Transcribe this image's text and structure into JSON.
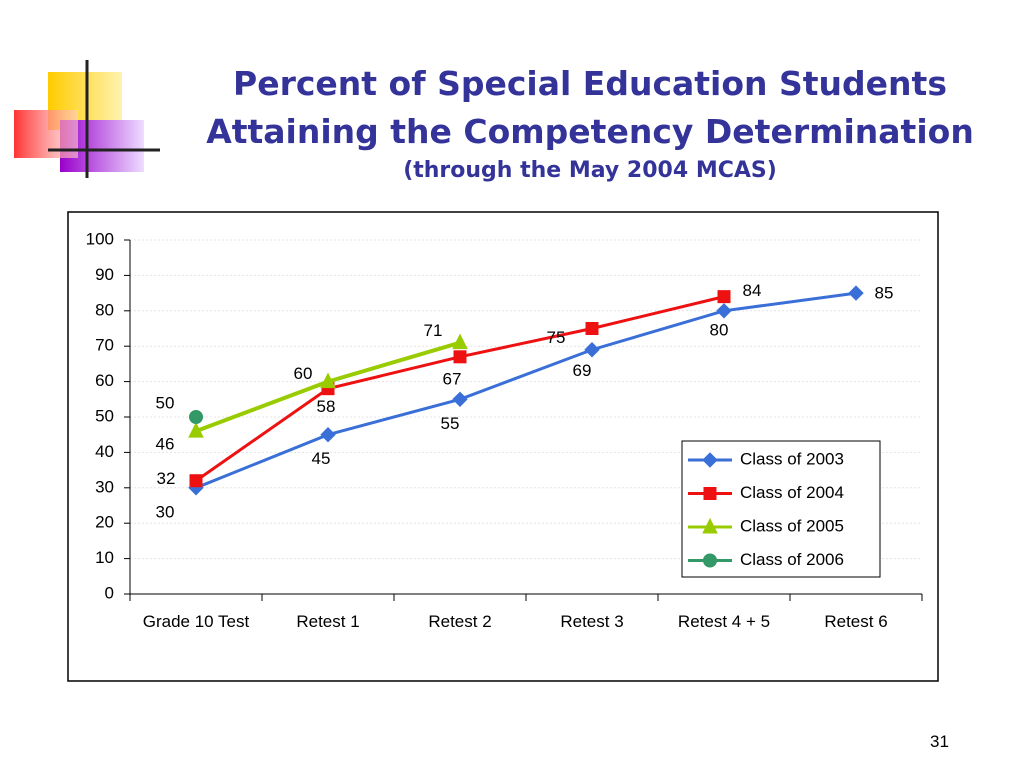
{
  "page_number": "31",
  "chart_data": {
    "type": "line",
    "title": "Percent of Special Education Students",
    "title_line_2": "Attaining the Competency Determination",
    "subtitle": "(through the May 2004 MCAS)",
    "categories": [
      "Grade 10 Test",
      "Retest 1",
      "Retest 2",
      "Retest 3",
      "Retest 4 + 5",
      "Retest 6"
    ],
    "series": [
      {
        "name": "Class of 2003",
        "color": "#3a6fd8",
        "marker": "diamond",
        "values": [
          30,
          45,
          55,
          69,
          80,
          85
        ]
      },
      {
        "name": "Class of 2004",
        "color": "#ee1111",
        "marker": "square",
        "values": [
          32,
          58,
          67,
          75,
          84,
          null
        ]
      },
      {
        "name": "Class of 2005",
        "color": "#99cc00",
        "marker": "triangle",
        "values": [
          46,
          60,
          71,
          null,
          null,
          null
        ]
      },
      {
        "name": "Class of 2006",
        "color": "#339966",
        "marker": "circle",
        "values": [
          50,
          null,
          null,
          null,
          null,
          null
        ]
      }
    ],
    "ylim": [
      0,
      100
    ],
    "yticks": [
      0,
      10,
      20,
      30,
      40,
      50,
      60,
      70,
      80,
      90,
      100
    ],
    "grid": true,
    "legend": "lower right"
  }
}
